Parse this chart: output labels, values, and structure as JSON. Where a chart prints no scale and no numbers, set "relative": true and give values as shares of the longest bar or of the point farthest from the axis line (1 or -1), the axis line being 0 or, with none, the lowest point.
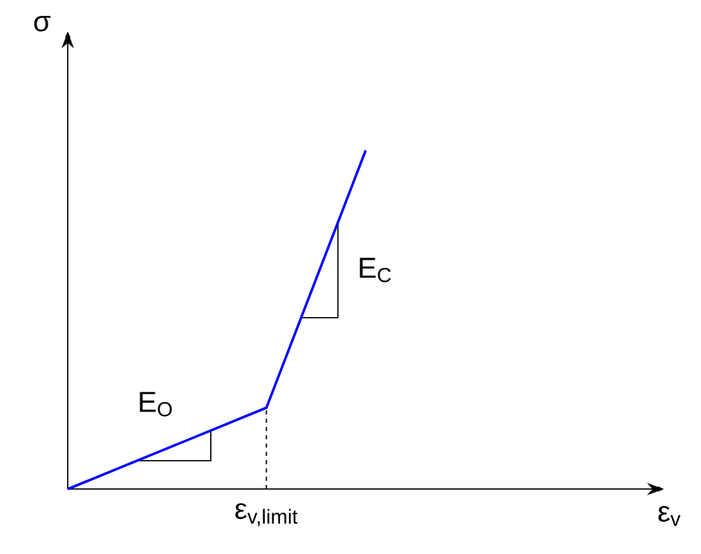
{
  "chart_data": {
    "type": "line",
    "relative": true,
    "xlabel": "ε$_{v}$",
    "ylabel": "σ",
    "categories": [
      null,
      null,
      null,
      null,
      null,
      null,
      null
    ],
    "series": [
      {
        "values": [
          0,
          0.12,
          0.24,
          1,
          null,
          null,
          null
        ],
        "color": "#0000ff"
      }
    ],
    "annotations": [
      "E$_{O}$",
      "E$_{C}$",
      "ε$_{v,limit}$"
    ]
  }
}
